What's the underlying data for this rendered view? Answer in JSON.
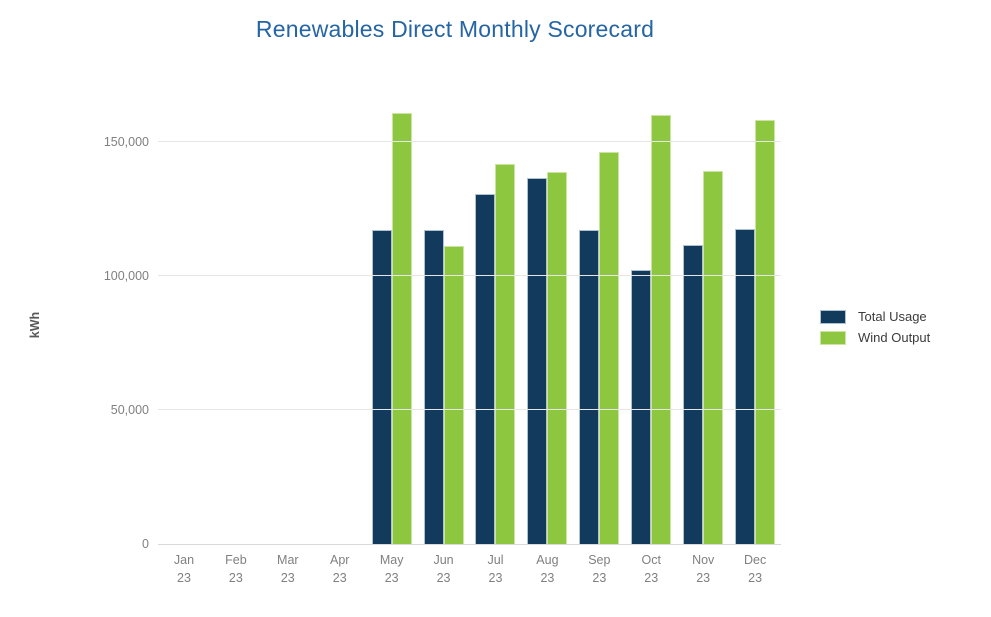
{
  "chart_data": {
    "type": "bar",
    "title": "Renewables Direct Monthly Scorecard",
    "ylabel": "kWh",
    "xlabel": "",
    "categories": [
      "Jan 23",
      "Feb 23",
      "Mar 23",
      "Apr 23",
      "May 23",
      "Jun 23",
      "Jul 23",
      "Aug 23",
      "Sep 23",
      "Oct 23",
      "Nov 23",
      "Dec 23"
    ],
    "series": [
      {
        "name": "Total Usage",
        "color": "#123a5c",
        "values": [
          null,
          null,
          null,
          null,
          117000,
          117000,
          130500,
          136500,
          117000,
          102000,
          111500,
          117500
        ]
      },
      {
        "name": "Wind Output",
        "color": "#8dc63f",
        "values": [
          null,
          null,
          null,
          null,
          160500,
          111000,
          141500,
          138500,
          146000,
          160000,
          139000,
          158000
        ]
      }
    ],
    "yticks": [
      {
        "value": 0,
        "label": "0"
      },
      {
        "value": 50000,
        "label": "50,000"
      },
      {
        "value": 100000,
        "label": "100,000"
      },
      {
        "value": 150000,
        "label": "150,000"
      }
    ],
    "ylim": [
      0,
      165500
    ],
    "grid": true,
    "legend_position": "right"
  },
  "colors": {
    "title": "#2565a3",
    "axis_text": "#808080",
    "ylabel_text": "#595959",
    "legend_text": "#3c3c3c",
    "gridline": "#e6e6e6",
    "axis_line": "#d9d9d9"
  }
}
